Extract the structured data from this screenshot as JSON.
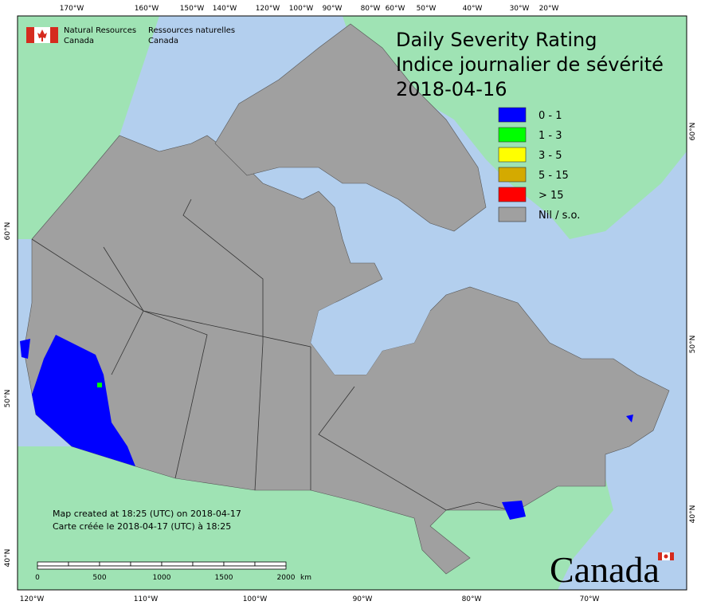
{
  "header": {
    "title": "Daily Severity Rating",
    "subtitle": "Indice journalier de sévérité",
    "date": "2018-04-16"
  },
  "agency": {
    "en_line1": "Natural Resources",
    "en_line2": "Canada",
    "fr_line1": "Ressources naturelles",
    "fr_line2": "Canada"
  },
  "legend": {
    "items": [
      {
        "label": "0 - 1",
        "color": "#0000ff"
      },
      {
        "label": "1 - 3",
        "color": "#00ff00"
      },
      {
        "label": "3 - 5",
        "color": "#ffff00"
      },
      {
        "label": "5 - 15",
        "color": "#d4aa00"
      },
      {
        "label": "> 15",
        "color": "#ff0000"
      },
      {
        "label": "Nil / s.o.",
        "color": "#a0a0a0"
      }
    ]
  },
  "graticule": {
    "top": [
      "170°W",
      "160°W",
      "150°W",
      "140°W",
      "120°W",
      "100°W",
      "90°W",
      "80°W",
      "60°W",
      "50°W",
      "40°W",
      "30°W",
      "20°W"
    ],
    "bottom": [
      "120°W",
      "110°W",
      "100°W",
      "90°W",
      "80°W",
      "70°W"
    ],
    "left": [
      "60°N",
      "50°N",
      "40°N"
    ],
    "right": [
      "60°N",
      "50°N",
      "40°N"
    ]
  },
  "credits": {
    "en": "Map created at 18:25 (UTC) on 2018-04-17",
    "fr": "Carte créée le 2018-04-17 (UTC) à 18:25"
  },
  "scale_bar": {
    "labels": [
      "0",
      "500",
      "1000",
      "1500",
      "2000"
    ],
    "unit": "km"
  },
  "wordmark": "Canada"
}
